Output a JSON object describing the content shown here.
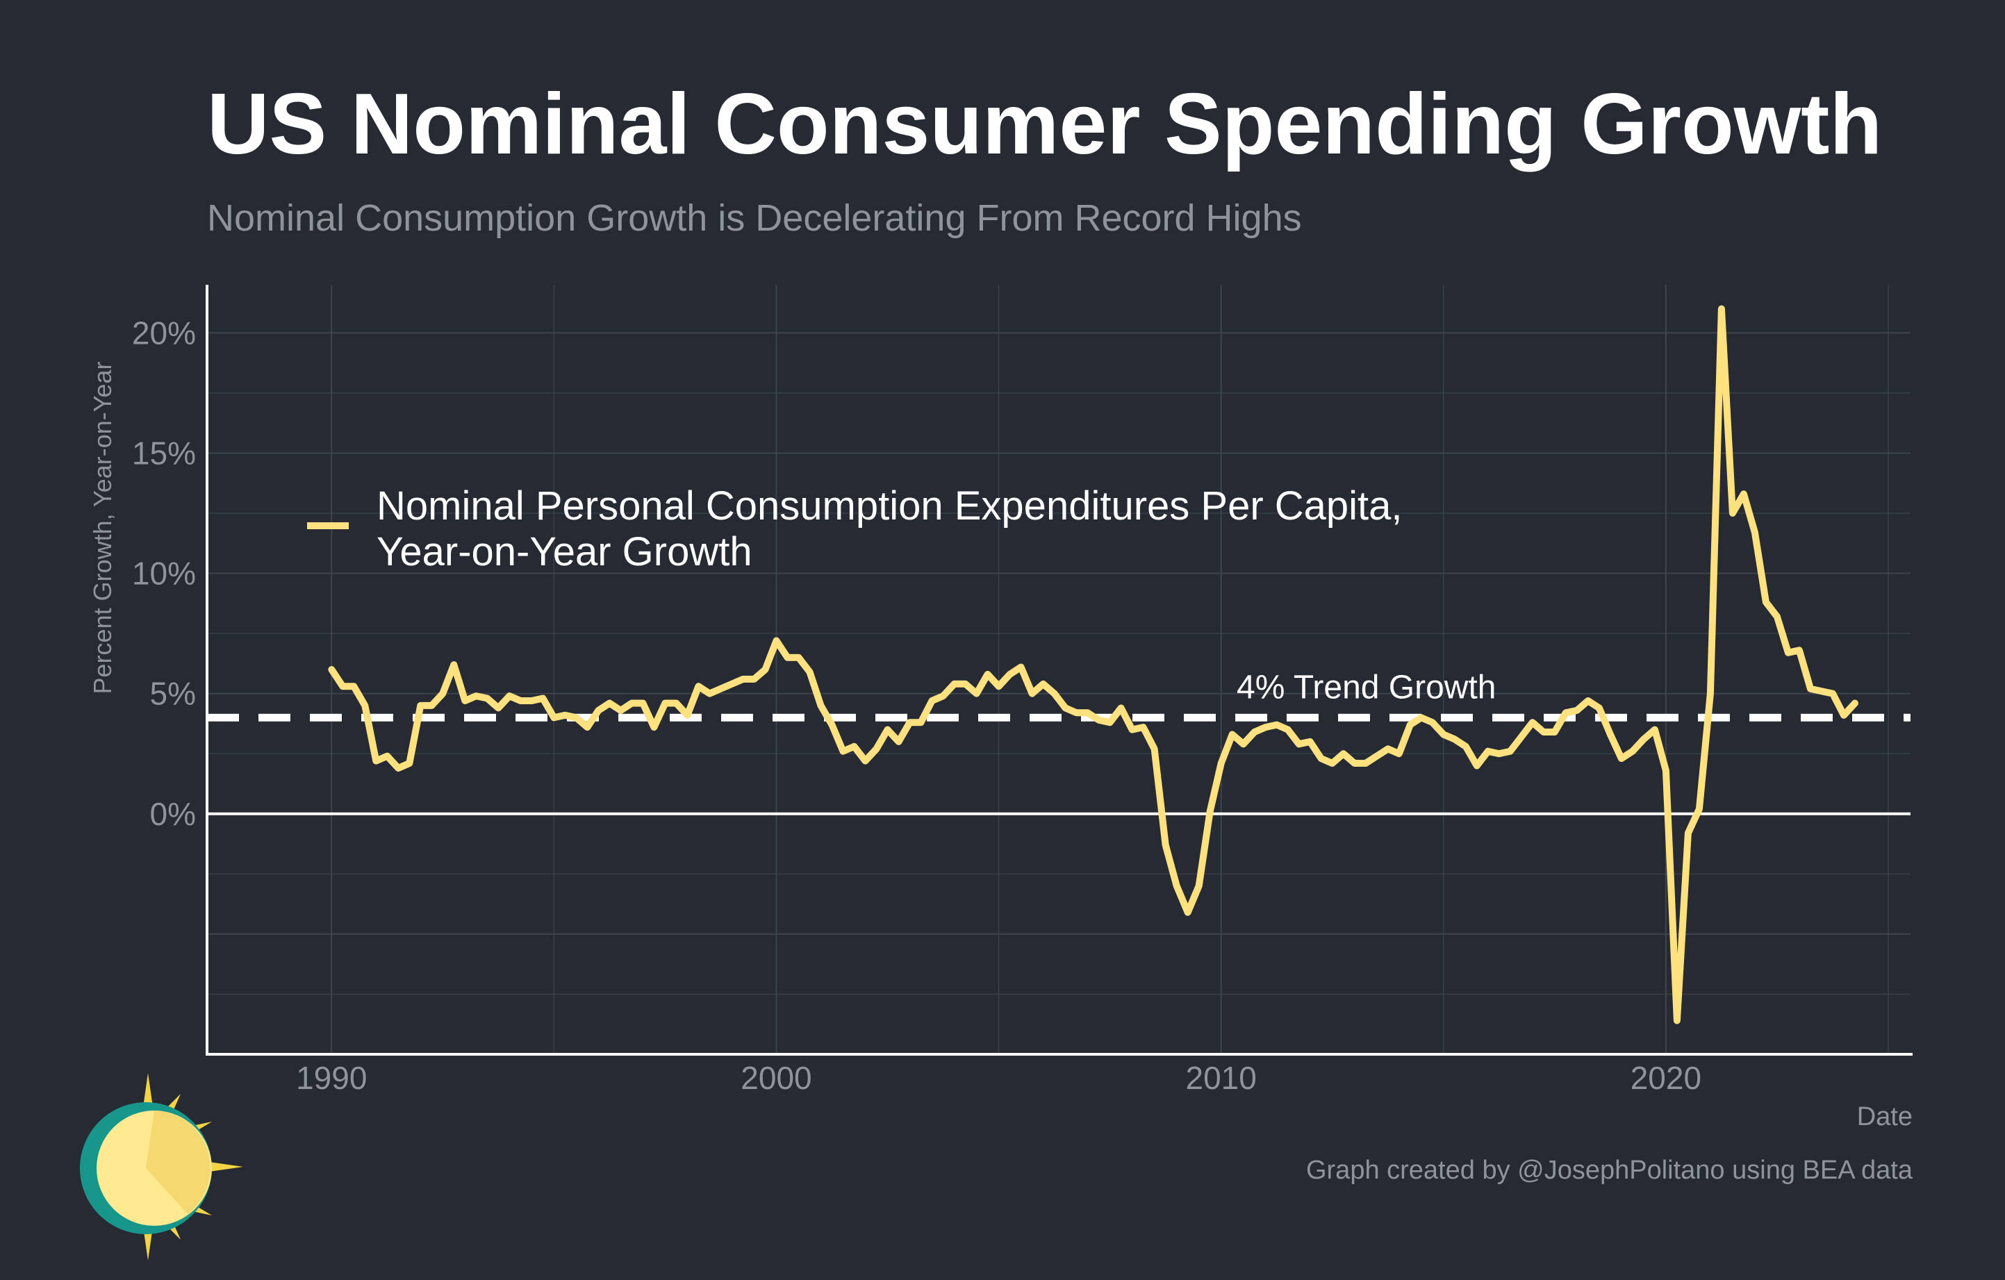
{
  "title": "US Nominal Consumer Spending Growth",
  "subtitle": "Nominal Consumption Growth is Decelerating From Record Highs",
  "caption": "Graph created by @JosephPolitano using BEA data",
  "colors": {
    "background": "#252a33",
    "series": "#ffe180",
    "trend": "#ffffff",
    "grid": "#3f444d",
    "text_muted": "#8f949b"
  },
  "chart_data": {
    "type": "line",
    "xlabel": "Date",
    "ylabel": "Percent Growth, Year-on-Year",
    "x_ticks": [
      "1990",
      "2000",
      "2010",
      "2020"
    ],
    "y_ticks": [
      "0%",
      "5%",
      "10%",
      "15%",
      "20%"
    ],
    "ylim": [
      -10,
      22
    ],
    "grid": true,
    "legend_position": "upper-left",
    "series": [
      {
        "name": "Nominal Personal Consumption Expenditures Per Capita, Year-on-Year Growth",
        "x": [
          1990.0,
          1990.25,
          1990.5,
          1990.75,
          1991.0,
          1991.25,
          1991.5,
          1991.75,
          1992.0,
          1992.25,
          1992.5,
          1992.75,
          1993.0,
          1993.25,
          1993.5,
          1993.75,
          1994.0,
          1994.25,
          1994.5,
          1994.75,
          1995.0,
          1995.25,
          1995.5,
          1995.75,
          1996.0,
          1996.25,
          1996.5,
          1996.75,
          1997.0,
          1997.25,
          1997.5,
          1997.75,
          1998.0,
          1998.25,
          1998.5,
          1998.75,
          1999.0,
          1999.25,
          1999.5,
          1999.75,
          2000.0,
          2000.25,
          2000.5,
          2000.75,
          2001.0,
          2001.25,
          2001.5,
          2001.75,
          2002.0,
          2002.25,
          2002.5,
          2002.75,
          2003.0,
          2003.25,
          2003.5,
          2003.75,
          2004.0,
          2004.25,
          2004.5,
          2004.75,
          2005.0,
          2005.25,
          2005.5,
          2005.75,
          2006.0,
          2006.25,
          2006.5,
          2006.75,
          2007.0,
          2007.25,
          2007.5,
          2007.75,
          2008.0,
          2008.25,
          2008.5,
          2008.75,
          2009.0,
          2009.25,
          2009.5,
          2009.75,
          2010.0,
          2010.25,
          2010.5,
          2010.75,
          2011.0,
          2011.25,
          2011.5,
          2011.75,
          2012.0,
          2012.25,
          2012.5,
          2012.75,
          2013.0,
          2013.25,
          2013.5,
          2013.75,
          2014.0,
          2014.25,
          2014.5,
          2014.75,
          2015.0,
          2015.25,
          2015.5,
          2015.75,
          2016.0,
          2016.25,
          2016.5,
          2016.75,
          2017.0,
          2017.25,
          2017.5,
          2017.75,
          2018.0,
          2018.25,
          2018.5,
          2018.75,
          2019.0,
          2019.25,
          2019.5,
          2019.75,
          2020.0,
          2020.25,
          2020.5,
          2020.75,
          2021.0,
          2021.25,
          2021.5,
          2021.75,
          2022.0,
          2022.25,
          2022.5,
          2022.75,
          2023.0,
          2023.25,
          2023.5,
          2023.75,
          2024.0,
          2024.25
        ],
        "values": [
          6.0,
          5.3,
          5.3,
          4.5,
          2.2,
          2.4,
          1.9,
          2.1,
          4.5,
          4.5,
          5.0,
          6.2,
          4.7,
          4.9,
          4.8,
          4.4,
          4.9,
          4.7,
          4.7,
          4.8,
          4.0,
          4.1,
          4.0,
          3.6,
          4.3,
          4.6,
          4.3,
          4.6,
          4.6,
          3.6,
          4.6,
          4.6,
          4.1,
          5.3,
          5.0,
          5.2,
          5.4,
          5.6,
          5.6,
          6.0,
          7.2,
          6.5,
          6.5,
          5.9,
          4.5,
          3.7,
          2.6,
          2.8,
          2.2,
          2.7,
          3.5,
          3.0,
          3.8,
          3.8,
          4.7,
          4.9,
          5.4,
          5.4,
          5.0,
          5.8,
          5.3,
          5.8,
          6.1,
          5.0,
          5.4,
          5.0,
          4.4,
          4.2,
          4.2,
          3.9,
          3.8,
          4.4,
          3.5,
          3.6,
          2.7,
          -1.3,
          -3.0,
          -4.1,
          -3.0,
          0.1,
          2.1,
          3.3,
          2.9,
          3.4,
          3.6,
          3.7,
          3.5,
          2.9,
          3.0,
          2.3,
          2.1,
          2.5,
          2.1,
          2.1,
          2.4,
          2.7,
          2.5,
          3.7,
          4.0,
          3.8,
          3.3,
          3.1,
          2.8,
          2.0,
          2.6,
          2.5,
          2.6,
          3.2,
          3.8,
          3.4,
          3.4,
          4.2,
          4.3,
          4.7,
          4.4,
          3.3,
          2.3,
          2.6,
          3.1,
          3.5,
          1.8,
          -8.6,
          -0.8,
          0.2,
          5.0,
          21.0,
          12.5,
          13.3,
          11.7,
          8.8,
          8.2,
          6.7,
          6.8,
          5.2,
          5.1,
          5.0,
          4.1,
          4.6
        ]
      }
    ],
    "reference_lines": [
      {
        "value": 4,
        "label": "4% Trend Growth",
        "style": "dashed"
      },
      {
        "value": 0,
        "style": "solid"
      }
    ]
  }
}
